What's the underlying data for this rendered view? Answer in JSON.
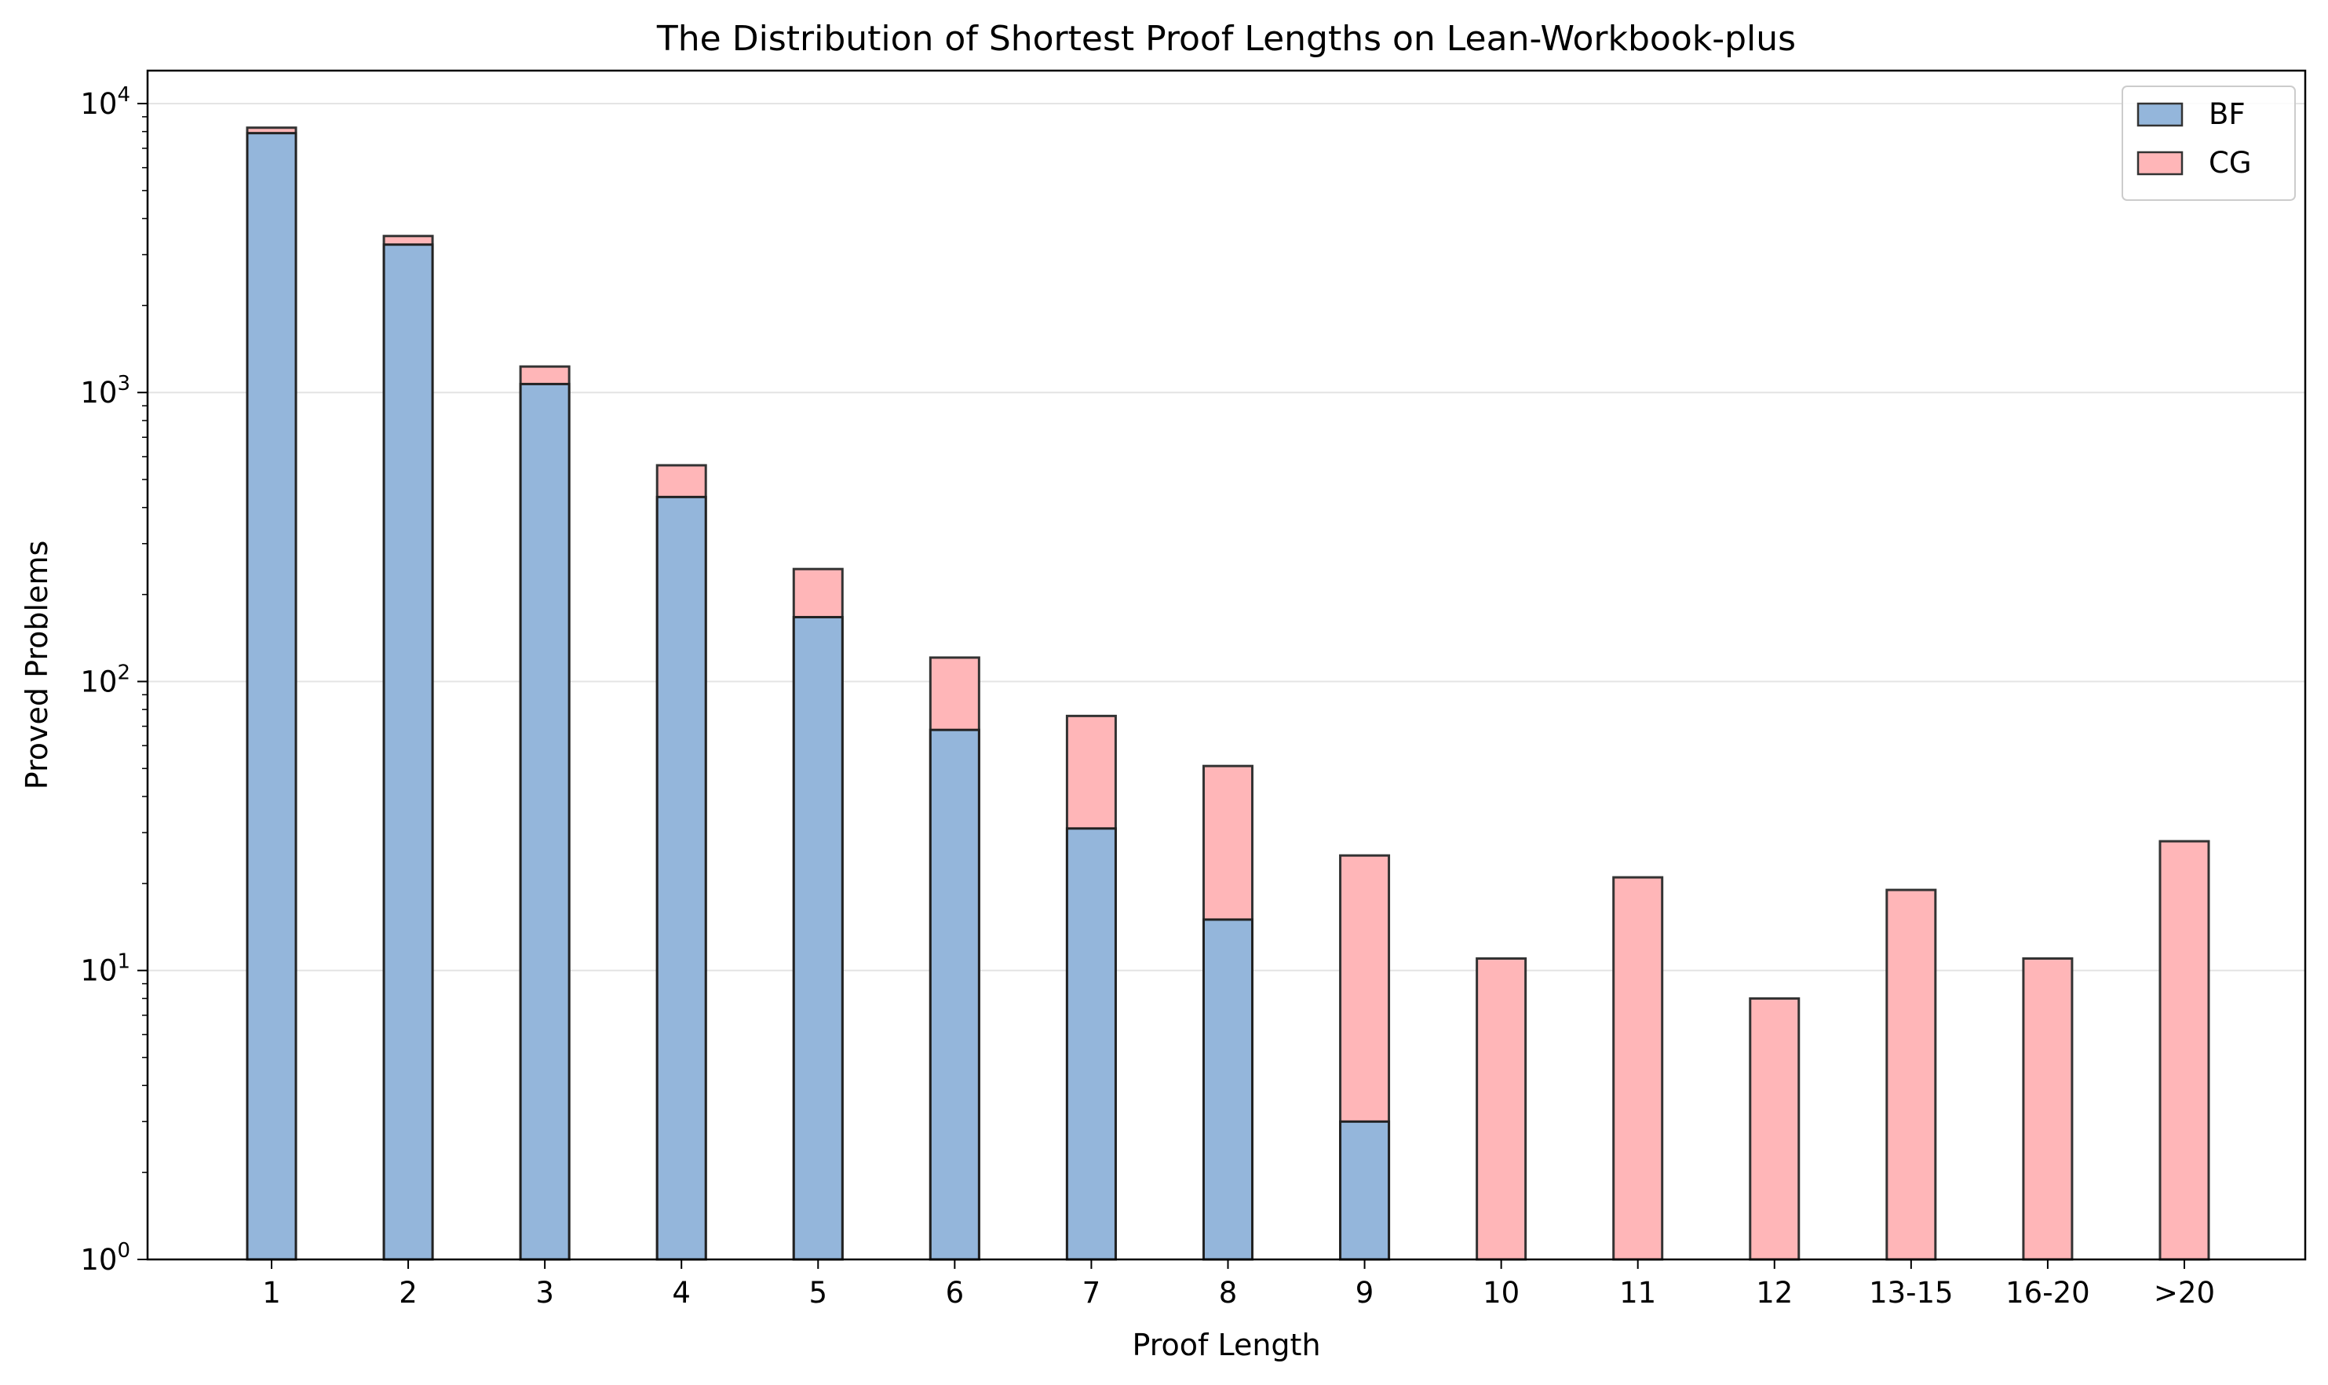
{
  "chart_data": {
    "type": "bar",
    "stacked": true,
    "title": "The Distribution of Shortest Proof Lengths on Lean-Workbook-plus",
    "xlabel": "Proof Length",
    "ylabel": "Proved Problems",
    "yscale": "log",
    "ylim": [
      1,
      13000
    ],
    "yticks": [
      {
        "base": "10",
        "exp": "0",
        "value": 1
      },
      {
        "base": "10",
        "exp": "1",
        "value": 10
      },
      {
        "base": "10",
        "exp": "2",
        "value": 100
      },
      {
        "base": "10",
        "exp": "3",
        "value": 1000
      },
      {
        "base": "10",
        "exp": "4",
        "value": 10000
      }
    ],
    "grid": "horizontal",
    "legend_position": "top-right",
    "categories": [
      "1",
      "2",
      "3",
      "4",
      "5",
      "6",
      "7",
      "8",
      "9",
      "10",
      "11",
      "12",
      "13-15",
      "16-20",
      ">20"
    ],
    "series": [
      {
        "name": "BF",
        "color": "#94b6db",
        "values": [
          7900,
          3250,
          1070,
          435,
          167,
          68,
          31,
          15,
          3,
          0,
          0,
          0,
          0,
          0,
          0
        ]
      },
      {
        "name": "CG",
        "color": "#ffb6b8",
        "values": [
          8250,
          3480,
          1230,
          560,
          245,
          121,
          76,
          51,
          25,
          11,
          21,
          8,
          19,
          11,
          28
        ]
      }
    ],
    "series_note": "CG values are total bar heights (tops); BF drawn in front from baseline"
  }
}
